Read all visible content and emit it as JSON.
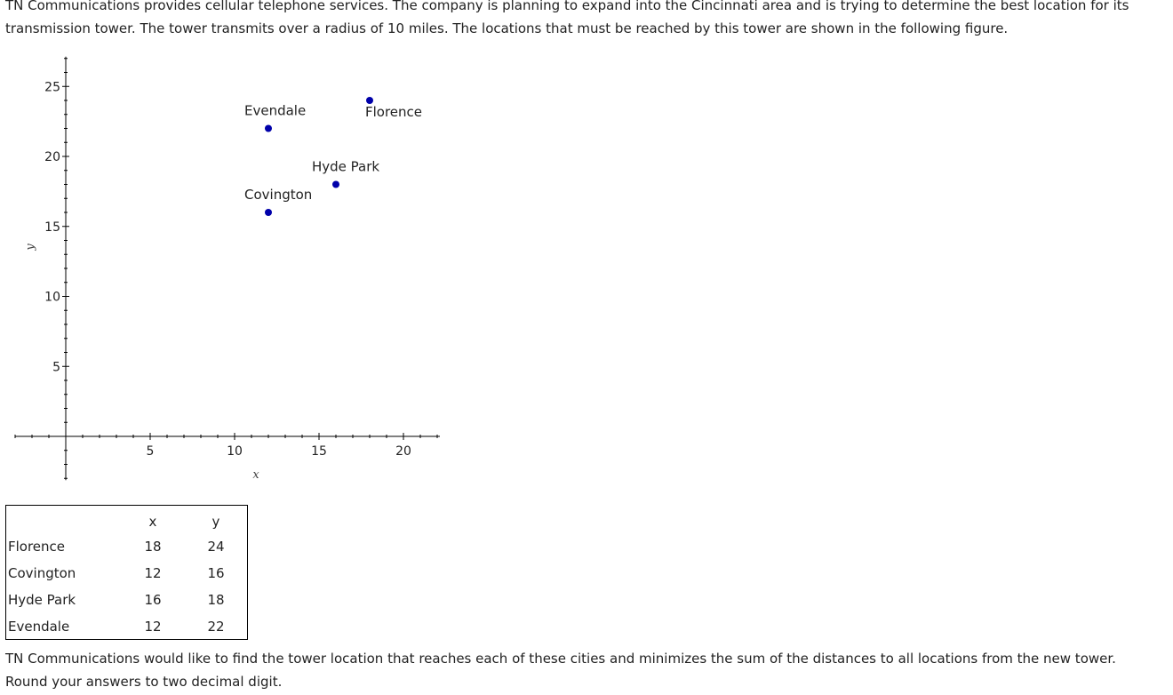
{
  "intro_text": "TN Communications provides cellular telephone services. The company is planning to expand into the Cincinnati area and is trying to determine the best location for its transmission tower. The tower transmits over a radius of 10 miles. The locations that must be reached by this tower are shown in the following figure.",
  "chart_data": {
    "type": "scatter",
    "xlabel": "x",
    "ylabel": "y",
    "x_ticks": [
      5,
      10,
      15,
      20
    ],
    "y_ticks": [
      5,
      10,
      15,
      20,
      25
    ],
    "xlim": [
      -3,
      22
    ],
    "ylim": [
      -3,
      27
    ],
    "grid": false,
    "point_color": "#0000aa",
    "points": [
      {
        "label": "Evendale",
        "x": 12,
        "y": 22
      },
      {
        "label": "Florence",
        "x": 18,
        "y": 24
      },
      {
        "label": "Hyde Park",
        "x": 16,
        "y": 18
      },
      {
        "label": "Covington",
        "x": 12,
        "y": 16
      }
    ]
  },
  "table": {
    "headers": [
      "",
      "x",
      "y"
    ],
    "rows": [
      {
        "name": "Florence",
        "x": "18",
        "y": "24"
      },
      {
        "name": "Covington",
        "x": "12",
        "y": "16"
      },
      {
        "name": "Hyde Park",
        "x": "16",
        "y": "18"
      },
      {
        "name": "Evendale",
        "x": "12",
        "y": "22"
      }
    ]
  },
  "outro_text": "TN Communications would like to find the tower location that reaches each of these cities and minimizes the sum of the distances to all locations from the new tower. Round your answers to two decimal digit."
}
